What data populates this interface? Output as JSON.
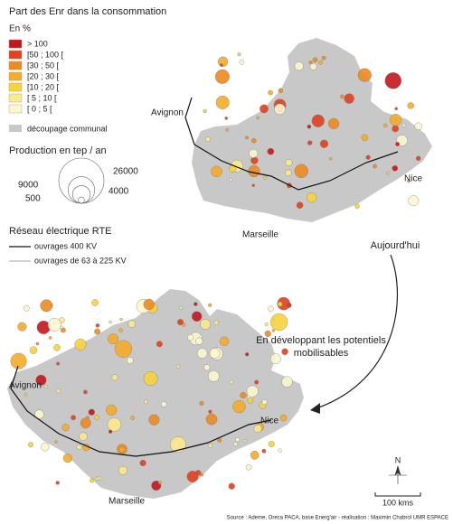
{
  "title": "Part des Enr dans la consommation",
  "unit": "En %",
  "classes": [
    {
      "label": "> 100",
      "color": "#c4161c"
    },
    {
      "label": "[50 ; 100 [",
      "color": "#e2401f"
    },
    {
      "label": "[30 ; 50 [",
      "color": "#ef8a1e"
    },
    {
      "label": "[20 ; 30 [",
      "color": "#f5ac2a"
    },
    {
      "label": "[10 ; 20 [",
      "color": "#f8d33c"
    },
    {
      "label": "[ 5 ; 10 [",
      "color": "#fbea8e"
    },
    {
      "label": "[ 0 ; 5 [",
      "color": "#fdf7cf"
    }
  ],
  "communal": {
    "label": "découpage communal",
    "color": "#c8c8c8"
  },
  "production": {
    "title": "Production en tep / an",
    "sizes": [
      26000,
      9000,
      4000,
      500
    ]
  },
  "network": {
    "title": "Réseau électrique RTE",
    "items": [
      "ouvrages 400 KV",
      "ouvrages de 63 à 225 KV"
    ]
  },
  "maps": [
    {
      "caption": "Aujourd'hui",
      "cities": [
        "Avignon",
        "Marseille",
        "Nice"
      ]
    },
    {
      "caption": "En développant les potentiels mobilisables",
      "cities": [
        "Avignon",
        "Marseille",
        "Nice"
      ]
    }
  ],
  "north": "N",
  "scale": "100 kms",
  "source": "Source : Ademe, Oreca PACA, base Energ'air - réalisation : Maximin Chabrol UMR ESPACE"
}
